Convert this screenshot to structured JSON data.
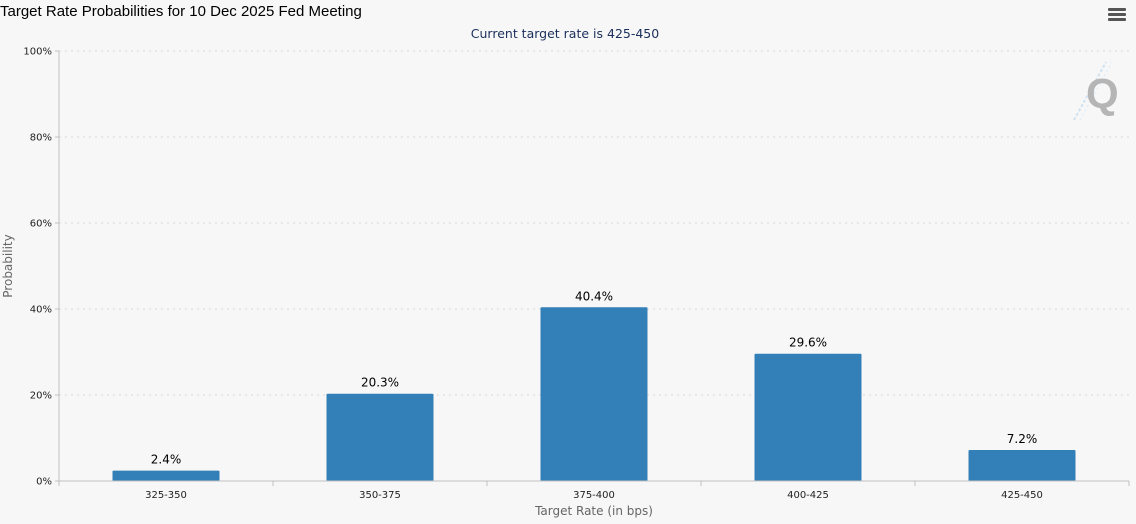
{
  "header": {
    "title": "Target Rate Probabilities for 10 Dec 2025 Fed Meeting",
    "subtitle": "Current target rate is 425-450"
  },
  "toolbar": {
    "menu_icon": "hamburger-menu-icon"
  },
  "watermark": {
    "icon": "quikstrike-q-logo-icon",
    "letter": "Q"
  },
  "colors": {
    "bar": "#337fb7",
    "grid": "#d9d9d9",
    "axis": "#c0c0c0",
    "background": "#f7f7f7"
  },
  "chart_data": {
    "type": "bar",
    "title": "Target Rate Probabilities for 10 Dec 2025 Fed Meeting",
    "subtitle": "Current target rate is 425-450",
    "xlabel": "Target Rate (in bps)",
    "ylabel": "Probability",
    "categories": [
      "325-350",
      "350-375",
      "375-400",
      "400-425",
      "425-450"
    ],
    "values": [
      2.4,
      20.3,
      40.4,
      29.6,
      7.2
    ],
    "data_labels": [
      "2.4%",
      "20.3%",
      "40.4%",
      "29.6%",
      "7.2%"
    ],
    "ylim": [
      0,
      100
    ],
    "yticks": [
      "0%",
      "20%",
      "40%",
      "60%",
      "80%",
      "100%"
    ],
    "ytick_values": [
      0,
      20,
      40,
      60,
      80,
      100
    ],
    "grid": true,
    "legend": "none"
  }
}
